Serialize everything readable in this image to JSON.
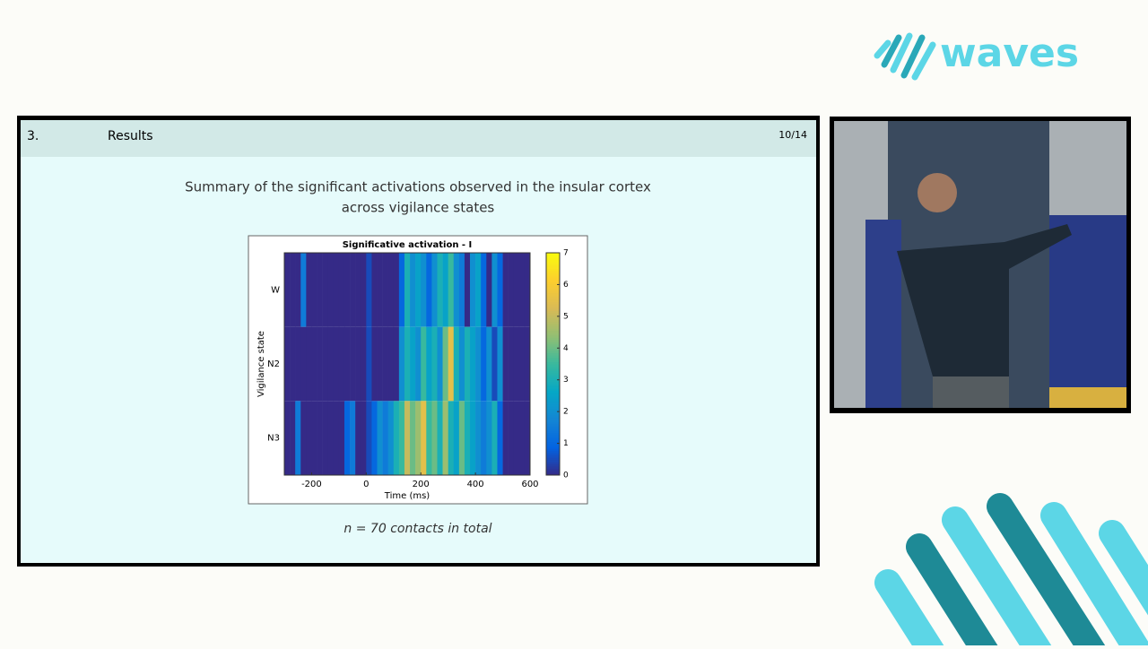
{
  "logo": "waves",
  "slide": {
    "section_number": "3.",
    "section_title": "Results",
    "page": "10/14",
    "heading": [
      "Summary of the significant activations observed in the insular cortex",
      "across vigilance states"
    ],
    "caption": "n = 70 contacts in total",
    "figure": {
      "type": "heatmap",
      "title": "Significative activation - I",
      "xlabel": "Time (ms)",
      "ylabel": "Vigilance state",
      "rows": [
        "W",
        "N2",
        "N3"
      ],
      "xbins": [
        -300,
        -280,
        -260,
        -240,
        -220,
        -200,
        -180,
        -160,
        -140,
        -120,
        -100,
        -80,
        -60,
        -40,
        -20,
        0,
        20,
        40,
        60,
        80,
        100,
        120,
        140,
        160,
        180,
        200,
        220,
        240,
        260,
        280,
        300,
        320,
        340,
        360,
        380,
        400,
        420,
        440,
        460,
        480,
        500,
        520,
        540,
        560,
        580,
        600
      ],
      "values": [
        [
          0,
          0,
          0,
          1.5,
          0,
          0,
          0,
          0,
          0,
          0,
          0,
          0,
          0,
          0,
          0,
          0.5,
          0,
          0,
          0,
          0,
          0,
          1,
          3,
          2,
          2.5,
          2,
          1,
          2,
          3,
          2.5,
          3.5,
          2,
          1.5,
          0,
          2,
          2.5,
          1,
          0,
          2,
          1,
          0,
          0,
          0,
          0,
          0
        ],
        [
          0,
          0,
          0,
          0,
          0,
          0,
          0,
          0,
          0,
          0,
          0,
          0,
          0,
          0,
          0,
          0.5,
          0,
          0,
          0,
          0,
          0,
          2,
          3,
          2.5,
          2,
          3.5,
          2.5,
          3,
          2,
          4,
          5.5,
          3,
          2,
          3,
          2.5,
          2,
          1,
          2,
          0.5,
          2,
          0,
          0,
          0,
          0,
          0
        ],
        [
          0,
          0,
          1.5,
          0,
          0,
          0,
          0,
          0,
          0,
          0,
          0,
          1,
          1.5,
          0,
          0,
          0.5,
          1,
          2,
          1.5,
          2,
          3,
          3.5,
          5,
          4,
          4.5,
          5.5,
          3.5,
          4,
          3,
          4.5,
          3,
          2.5,
          4,
          3,
          2.5,
          2,
          1.5,
          2,
          3,
          1,
          0,
          0,
          0,
          0,
          0
        ]
      ],
      "xlim": [
        -300,
        600
      ],
      "xticks": [
        -200,
        0,
        200,
        400,
        600
      ],
      "clim": [
        0,
        7
      ],
      "cticks": [
        0,
        1,
        2,
        3,
        4,
        5,
        6,
        7
      ]
    }
  }
}
